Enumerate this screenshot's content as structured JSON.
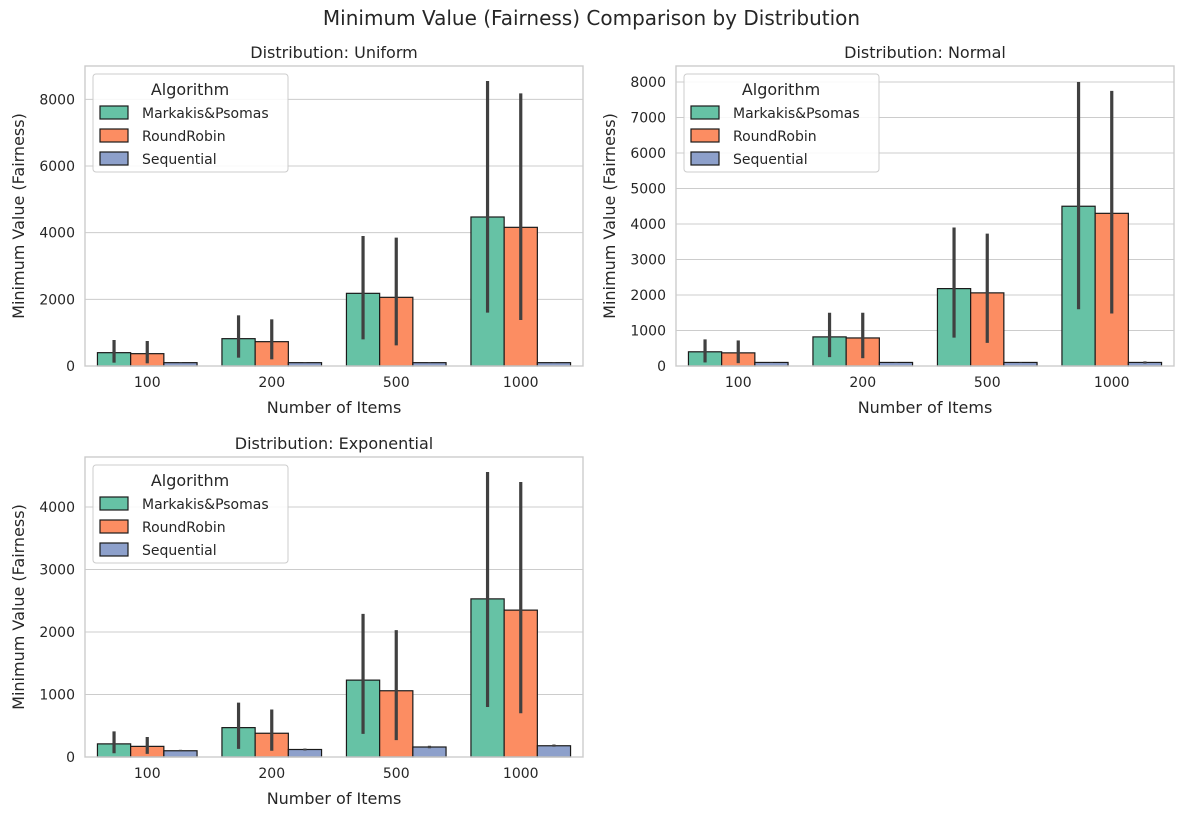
{
  "figure": {
    "title": "Minimum Value (Fairness) Comparison by Distribution"
  },
  "colors": {
    "Markakis&Psomas": "#66c2a5",
    "RoundRobin": "#fc8d62",
    "Sequential": "#8da0cb",
    "errorbar": "#404040",
    "grid": "#cccccc",
    "spine": "#cccccc"
  },
  "chart_data": [
    {
      "type": "bar",
      "title": "Distribution: Uniform",
      "xlabel": "Number of Items",
      "ylabel": "Minimum Value (Fairness)",
      "categories": [
        "100",
        "200",
        "500",
        "1000"
      ],
      "ylim": [
        0,
        9000
      ],
      "yticks": [
        0,
        2000,
        4000,
        6000,
        8000
      ],
      "grid": "y",
      "legend": {
        "title": "Algorithm",
        "placement": "upper-left"
      },
      "series": [
        {
          "name": "Markakis&Psomas",
          "values": [
            400,
            820,
            2180,
            4470
          ],
          "err_low": [
            100,
            250,
            800,
            1600
          ],
          "err_high": [
            780,
            1520,
            3900,
            8550
          ]
        },
        {
          "name": "RoundRobin",
          "values": [
            370,
            730,
            2060,
            4160
          ],
          "err_low": [
            80,
            200,
            620,
            1380
          ],
          "err_high": [
            750,
            1400,
            3850,
            8180
          ]
        },
        {
          "name": "Sequential",
          "values": [
            100,
            100,
            100,
            100
          ],
          "err_low": [
            95,
            95,
            95,
            95
          ],
          "err_high": [
            105,
            105,
            105,
            105
          ]
        }
      ]
    },
    {
      "type": "bar",
      "title": "Distribution: Normal",
      "xlabel": "Number of Items",
      "ylabel": "Minimum Value (Fairness)",
      "categories": [
        "100",
        "200",
        "500",
        "1000"
      ],
      "ylim": [
        0,
        8450
      ],
      "yticks": [
        0,
        1000,
        2000,
        3000,
        4000,
        5000,
        6000,
        7000,
        8000
      ],
      "grid": "y",
      "legend": {
        "title": "Algorithm",
        "placement": "upper-left"
      },
      "series": [
        {
          "name": "Markakis&Psomas",
          "values": [
            400,
            820,
            2180,
            4500
          ],
          "err_low": [
            100,
            250,
            800,
            1600
          ],
          "err_high": [
            750,
            1500,
            3900,
            8000
          ]
        },
        {
          "name": "RoundRobin",
          "values": [
            370,
            790,
            2060,
            4300
          ],
          "err_low": [
            80,
            220,
            650,
            1480
          ],
          "err_high": [
            720,
            1500,
            3730,
            7750
          ]
        },
        {
          "name": "Sequential",
          "values": [
            100,
            100,
            100,
            100
          ],
          "err_low": [
            95,
            95,
            95,
            70
          ],
          "err_high": [
            105,
            105,
            105,
            130
          ]
        }
      ]
    },
    {
      "type": "bar",
      "title": "Distribution: Exponential",
      "xlabel": "Number of Items",
      "ylabel": "Minimum Value (Fairness)",
      "categories": [
        "100",
        "200",
        "500",
        "1000"
      ],
      "ylim": [
        0,
        4800
      ],
      "yticks": [
        0,
        1000,
        2000,
        3000,
        4000
      ],
      "grid": "y",
      "legend": {
        "title": "Algorithm",
        "placement": "upper-left"
      },
      "series": [
        {
          "name": "Markakis&Psomas",
          "values": [
            210,
            470,
            1230,
            2530
          ],
          "err_low": [
            60,
            130,
            370,
            800
          ],
          "err_high": [
            410,
            870,
            2290,
            4560
          ]
        },
        {
          "name": "RoundRobin",
          "values": [
            170,
            380,
            1060,
            2350
          ],
          "err_low": [
            50,
            100,
            270,
            700
          ],
          "err_high": [
            320,
            760,
            2030,
            4400
          ]
        },
        {
          "name": "Sequential",
          "values": [
            100,
            120,
            160,
            180
          ],
          "err_low": [
            90,
            105,
            140,
            165
          ],
          "err_high": [
            115,
            135,
            180,
            200
          ]
        }
      ]
    }
  ]
}
